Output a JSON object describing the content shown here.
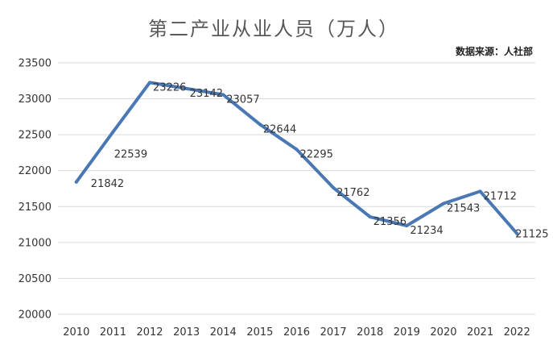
{
  "chart_data": {
    "type": "line",
    "title": "第二产业从业人员（万人）",
    "source": "数据来源：人社部",
    "xlabel": "",
    "ylabel": "",
    "x": [
      "2010",
      "2011",
      "2012",
      "2013",
      "2014",
      "2015",
      "2016",
      "2017",
      "2018",
      "2019",
      "2020",
      "2021",
      "2022"
    ],
    "series": [
      {
        "values": [
          21842,
          22539,
          23226,
          23142,
          23057,
          22644,
          22295,
          21762,
          21356,
          21234,
          21543,
          21712,
          21125
        ]
      }
    ],
    "ylim": [
      20000,
      23500
    ],
    "yticks": [
      "20000",
      "20500",
      "21000",
      "21500",
      "22000",
      "22500",
      "23000",
      "23500"
    ],
    "grid": true,
    "legend": "none",
    "line_color": "#4a78b5"
  }
}
